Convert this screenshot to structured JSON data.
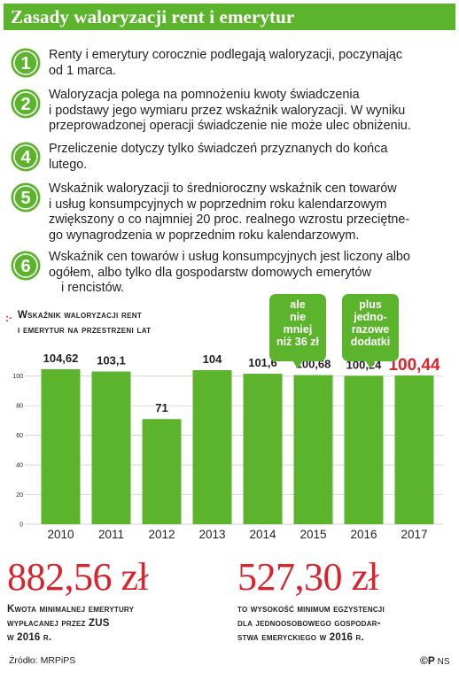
{
  "header": {
    "title": "Zasady waloryzacji rent i emerytur"
  },
  "rules": [
    {
      "number": "1",
      "lines": [
        "Renty i emerytury corocznie podlegają waloryzacji, poczynając",
        "od 1 marca."
      ]
    },
    {
      "number": "2",
      "lines": [
        "Waloryzacja polega na pomnożeniu kwoty świadczenia",
        "i podstawy jego wymiaru przez wskaźnik waloryzacji. W wyniku",
        "przeprowadzonej operacji świadczenie nie może ulec obniżeniu."
      ]
    },
    {
      "number": "4",
      "lines": [
        "Przeliczenie dotyczy tylko świadczeń przyznanych do końca",
        "lutego."
      ]
    },
    {
      "number": "5",
      "lines": [
        "Wskaźnik waloryzacji  to średnioroczny wskaźnik cen towarów",
        "i usług konsumpcyjnych w poprzednim roku kalendarzowym",
        "zwiększony o co najmniej 20 proc. realnego wzrostu przeciętne-",
        "go wynagrodzenia w poprzednim roku kalendarzowym."
      ]
    },
    {
      "number": "6",
      "lines": [
        "Wskaźnik cen towarów i usług konsumpcyjnych jest liczony albo",
        "ogółem, albo tylko dla gospodarstw domowych emerytów",
        "i rencistów."
      ]
    }
  ],
  "callouts": [
    {
      "lines": [
        "ale",
        "nie",
        "mniej",
        "niż 36 zł"
      ]
    },
    {
      "lines": [
        "plus",
        "jedno-",
        "razowe",
        "dodatki"
      ]
    }
  ],
  "chart_data": {
    "type": "bar",
    "title": [
      "Wskaźnik waloryzacji rent",
      "i emerytur na przestrzeni lat"
    ],
    "categories": [
      "2010",
      "2011",
      "2012",
      "2013",
      "2014",
      "2015",
      "2016",
      "2017"
    ],
    "values": [
      104.62,
      103.1,
      71,
      104,
      101.6,
      100.68,
      100.24,
      100.44
    ],
    "value_labels": [
      "104,62",
      "103,1",
      "71",
      "104",
      "101,6",
      "100,68",
      "100,24",
      "100,44"
    ],
    "highlight_index": 7,
    "yticks": [
      "0",
      "20",
      "40",
      "60",
      "80",
      "100"
    ],
    "ylim": [
      0,
      104.62
    ],
    "grid": true,
    "colors": {
      "bar": "#5cb42c",
      "highlight_label": "#d9232d",
      "grid": "#c9c9c9"
    }
  },
  "facts": [
    {
      "amount": "882,56 zł",
      "lines": [
        "Kwota minimalnej emerytury",
        "wypłacanej przez ZUS",
        "w 2016 r."
      ]
    },
    {
      "amount": "527,30 zł",
      "lines": [
        "to wysokość minimum egzystencji",
        "dla jednoosobowego gospodar-",
        "stwa emeryckiego w 2016 r."
      ]
    }
  ],
  "footer": {
    "source": "Źródło: MRPiPS",
    "credit_mark": "©P",
    "credit_text": "NS"
  },
  "colors": {
    "brand_green": "#5cb42c",
    "accent_red": "#d9232d"
  }
}
